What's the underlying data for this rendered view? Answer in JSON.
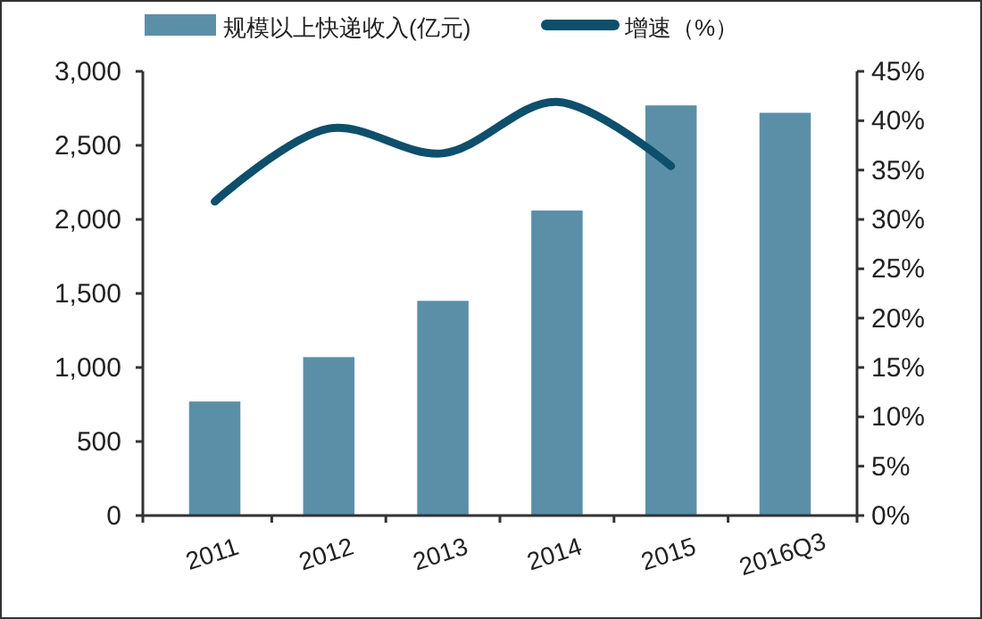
{
  "chart_data": {
    "type": "bar",
    "categories": [
      "2011",
      "2012",
      "2013",
      "2014",
      "2015",
      "2016Q3"
    ],
    "series": [
      {
        "name": "规模以上快递收入(亿元)",
        "color": "#5b8fa8",
        "values": [
          770,
          1070,
          1450,
          2060,
          2770,
          2720
        ]
      },
      {
        "name": "增速（%）",
        "type": "line",
        "axis": "y2",
        "color": "#0e4f6b",
        "values": [
          31.8,
          39.2,
          36.7,
          41.9,
          35.4,
          null
        ]
      }
    ],
    "ylim": [
      0,
      3000
    ],
    "yticks": [
      0,
      {
        "value": 500,
        "label": "500"
      },
      {
        "value": 1000,
        "label": "1,000"
      },
      {
        "value": 1500,
        "label": "1,500"
      },
      {
        "value": 2000,
        "label": "2,000"
      },
      {
        "value": 2500,
        "label": "2,500"
      },
      {
        "value": 3000,
        "label": "3,000"
      }
    ],
    "y2lim": [
      0,
      45
    ],
    "y2ticks": [
      {
        "value": 0,
        "label": "0%"
      },
      {
        "value": 5,
        "label": "5%"
      },
      {
        "value": 10,
        "label": "10%"
      },
      {
        "value": 15,
        "label": "15%"
      },
      {
        "value": 20,
        "label": "20%"
      },
      {
        "value": 25,
        "label": "25%"
      },
      {
        "value": 30,
        "label": "30%"
      },
      {
        "value": 35,
        "label": "35%"
      },
      {
        "value": 40,
        "label": "40%"
      },
      {
        "value": 45,
        "label": "45%"
      }
    ],
    "legend": "top",
    "grid": false,
    "marker": "none",
    "line_style": "solid"
  }
}
